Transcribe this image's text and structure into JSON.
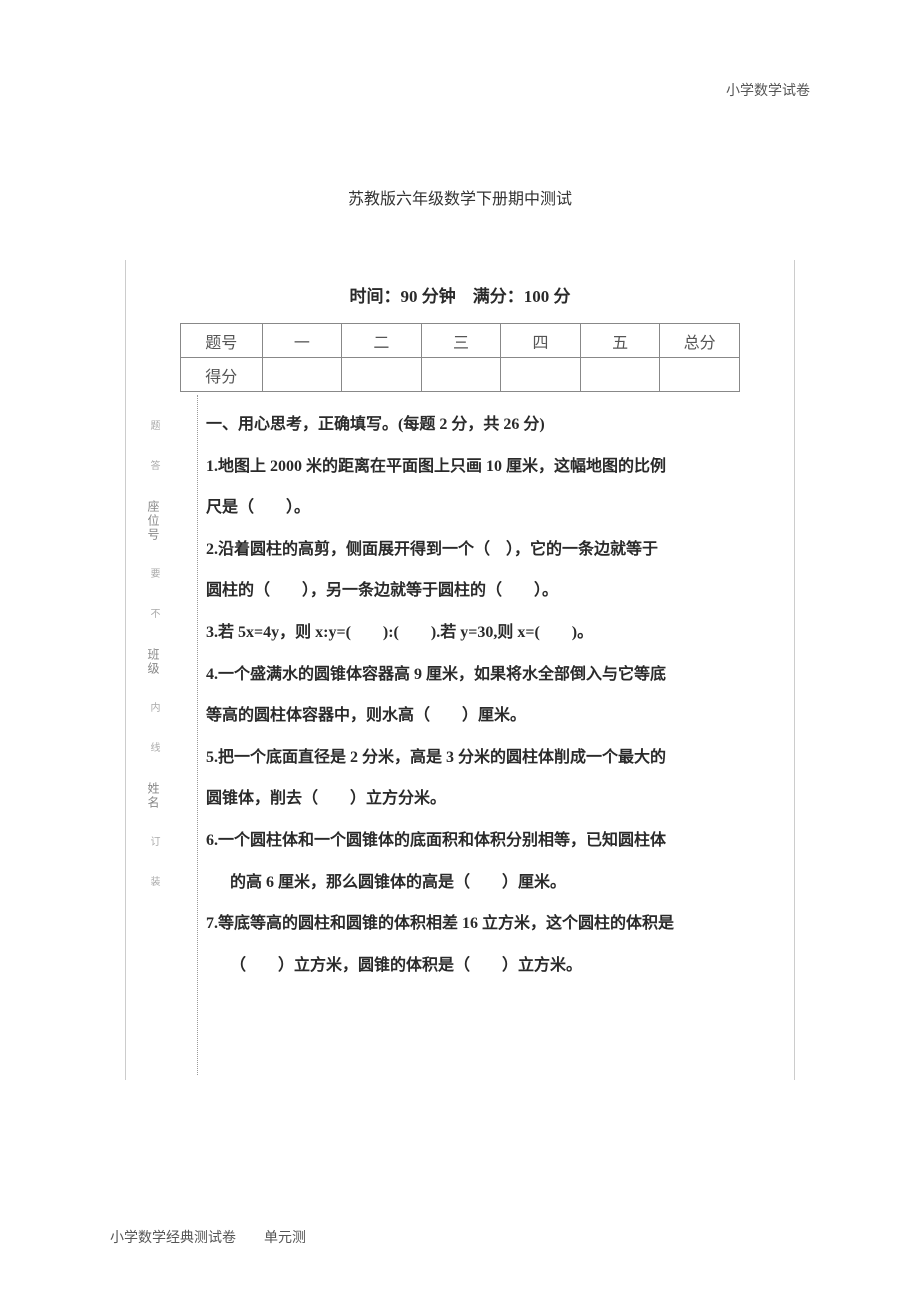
{
  "header": {
    "right": "小学数学试卷"
  },
  "title": "苏教版六年级数学下册期中测试",
  "timing": "时间：90 分钟　满分：100 分",
  "table": {
    "row1": [
      "题号",
      "一",
      "二",
      "三",
      "四",
      "五",
      "总分"
    ],
    "row2": [
      "得分",
      "",
      "",
      "",
      "",
      "",
      ""
    ]
  },
  "section1_head": "一、用心思考，正确填写。(每题 2 分，共 26 分)",
  "q1a": "1.地图上 2000 米的距离在平面图上只画 10 厘米，这幅地图的比例",
  "q1b": "尺是（　　）。",
  "q2a": "2.沿着圆柱的高剪，侧面展开得到一个（　），它的一条边就等于",
  "q2b": "圆柱的（　　），另一条边就等于圆柱的（　　）。",
  "q3": "3.若 5x=4y，则 x:y=(　　):(　　).若 y=30,则 x=(　　)。",
  "q4a": "4.一个盛满水的圆锥体容器高 9 厘米，如果将水全部倒入与它等底",
  "q4b": "等高的圆柱体容器中，则水高（　　）厘米。",
  "q5a": "5.把一个底面直径是 2 分米，高是 3 分米的圆柱体削成一个最大的",
  "q5b": "圆锥体，削去（　　）立方分米。",
  "q6a": "6.一个圆柱体和一个圆锥体的底面积和体积分别相等，已知圆柱体",
  "q6b": "的高 6 厘米，那么圆锥体的高是（　　）厘米。",
  "q7a": "7.等底等高的圆柱和圆锥的体积相差 16 立方米，这个圆柱的体积是",
  "q7b": "（　　）立方米，圆锥的体积是（　　）立方米。",
  "side": {
    "a": "座位号",
    "b": "班级",
    "c": "姓名",
    "hint1": "题",
    "hint2": "答",
    "hint3": "要",
    "hint4": "不",
    "hint5": "内",
    "hint6": "线",
    "hint7": "订",
    "hint8": "装"
  },
  "footer": {
    "left": "小学数学经典测试卷　　单元测"
  }
}
